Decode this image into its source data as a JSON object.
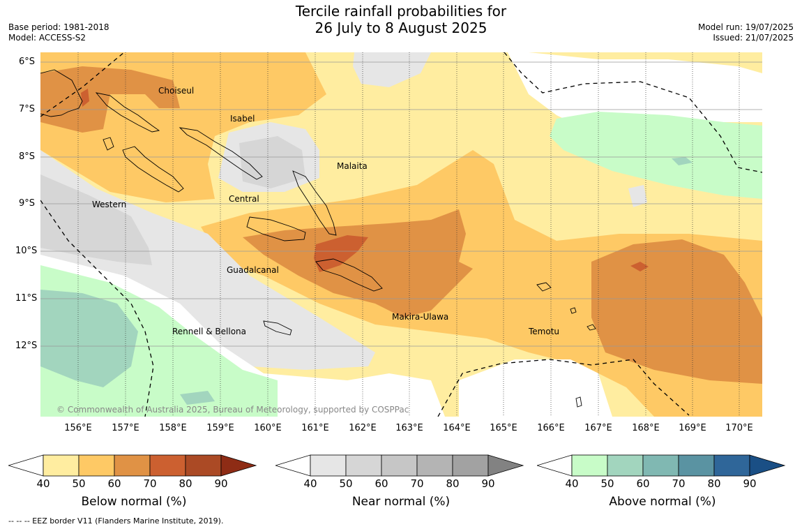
{
  "header": {
    "title_line1": "Tercile rainfall probabilities for",
    "title_line2": "26 July to 8 August 2025",
    "base_period": "Base period: 1981-2018",
    "model": "Model: ACCESS-S2",
    "model_run": "Model run: 19/07/2025",
    "issued": "Issued: 21/07/2025"
  },
  "map": {
    "lat_labels": [
      "6°S",
      "7°S",
      "8°S",
      "9°S",
      "10°S",
      "11°S",
      "12°S"
    ],
    "lon_labels": [
      "156°E",
      "157°E",
      "158°E",
      "159°E",
      "160°E",
      "161°E",
      "162°E",
      "163°E",
      "164°E",
      "165°E",
      "166°E",
      "167°E",
      "168°E",
      "169°E",
      "170°E"
    ],
    "provinces": [
      "Choiseul",
      "Isabel",
      "Malaita",
      "Central",
      "Western",
      "Guadalcanal",
      "Makira-Ulawa",
      "Temotu",
      "Rennell & Bellona"
    ],
    "copyright": "© Commonwealth of Australia 2025, Bureau of Meteorology, supported by COSPPac",
    "colors": {
      "below_50": "#ffeda0",
      "below_60": "#fec965",
      "below_70": "#e09245",
      "below_80": "#cc6030",
      "near_50": "#e6e6e6",
      "near_60": "#d6d6d6",
      "above_50": "#c8fcc8",
      "above_60": "#a2d5be",
      "above_70": "#80b8b2"
    }
  },
  "colorbars": [
    {
      "title": "Below normal (%)",
      "ticks": [
        "40",
        "50",
        "60",
        "70",
        "80",
        "90"
      ],
      "colors": [
        "#ffeda0",
        "#fec965",
        "#e09245",
        "#cc6030",
        "#ab4a25"
      ],
      "max_color": "#8e2c15"
    },
    {
      "title": "Near normal (%)",
      "ticks": [
        "40",
        "50",
        "60",
        "70",
        "80",
        "90"
      ],
      "colors": [
        "#e6e6e6",
        "#d6d6d6",
        "#c6c6c6",
        "#b4b4b4",
        "#a2a2a2"
      ],
      "max_color": "#828282"
    },
    {
      "title": "Above normal (%)",
      "ticks": [
        "40",
        "50",
        "60",
        "70",
        "80",
        "90"
      ],
      "colors": [
        "#c8fcc8",
        "#a2d5be",
        "#80b8b2",
        "#5a93a2",
        "#2f6699"
      ],
      "max_color": "#1a4f85"
    }
  ],
  "footnote": "--  --  -- EEZ border V11 (Flanders Marine Institute, 2019)."
}
